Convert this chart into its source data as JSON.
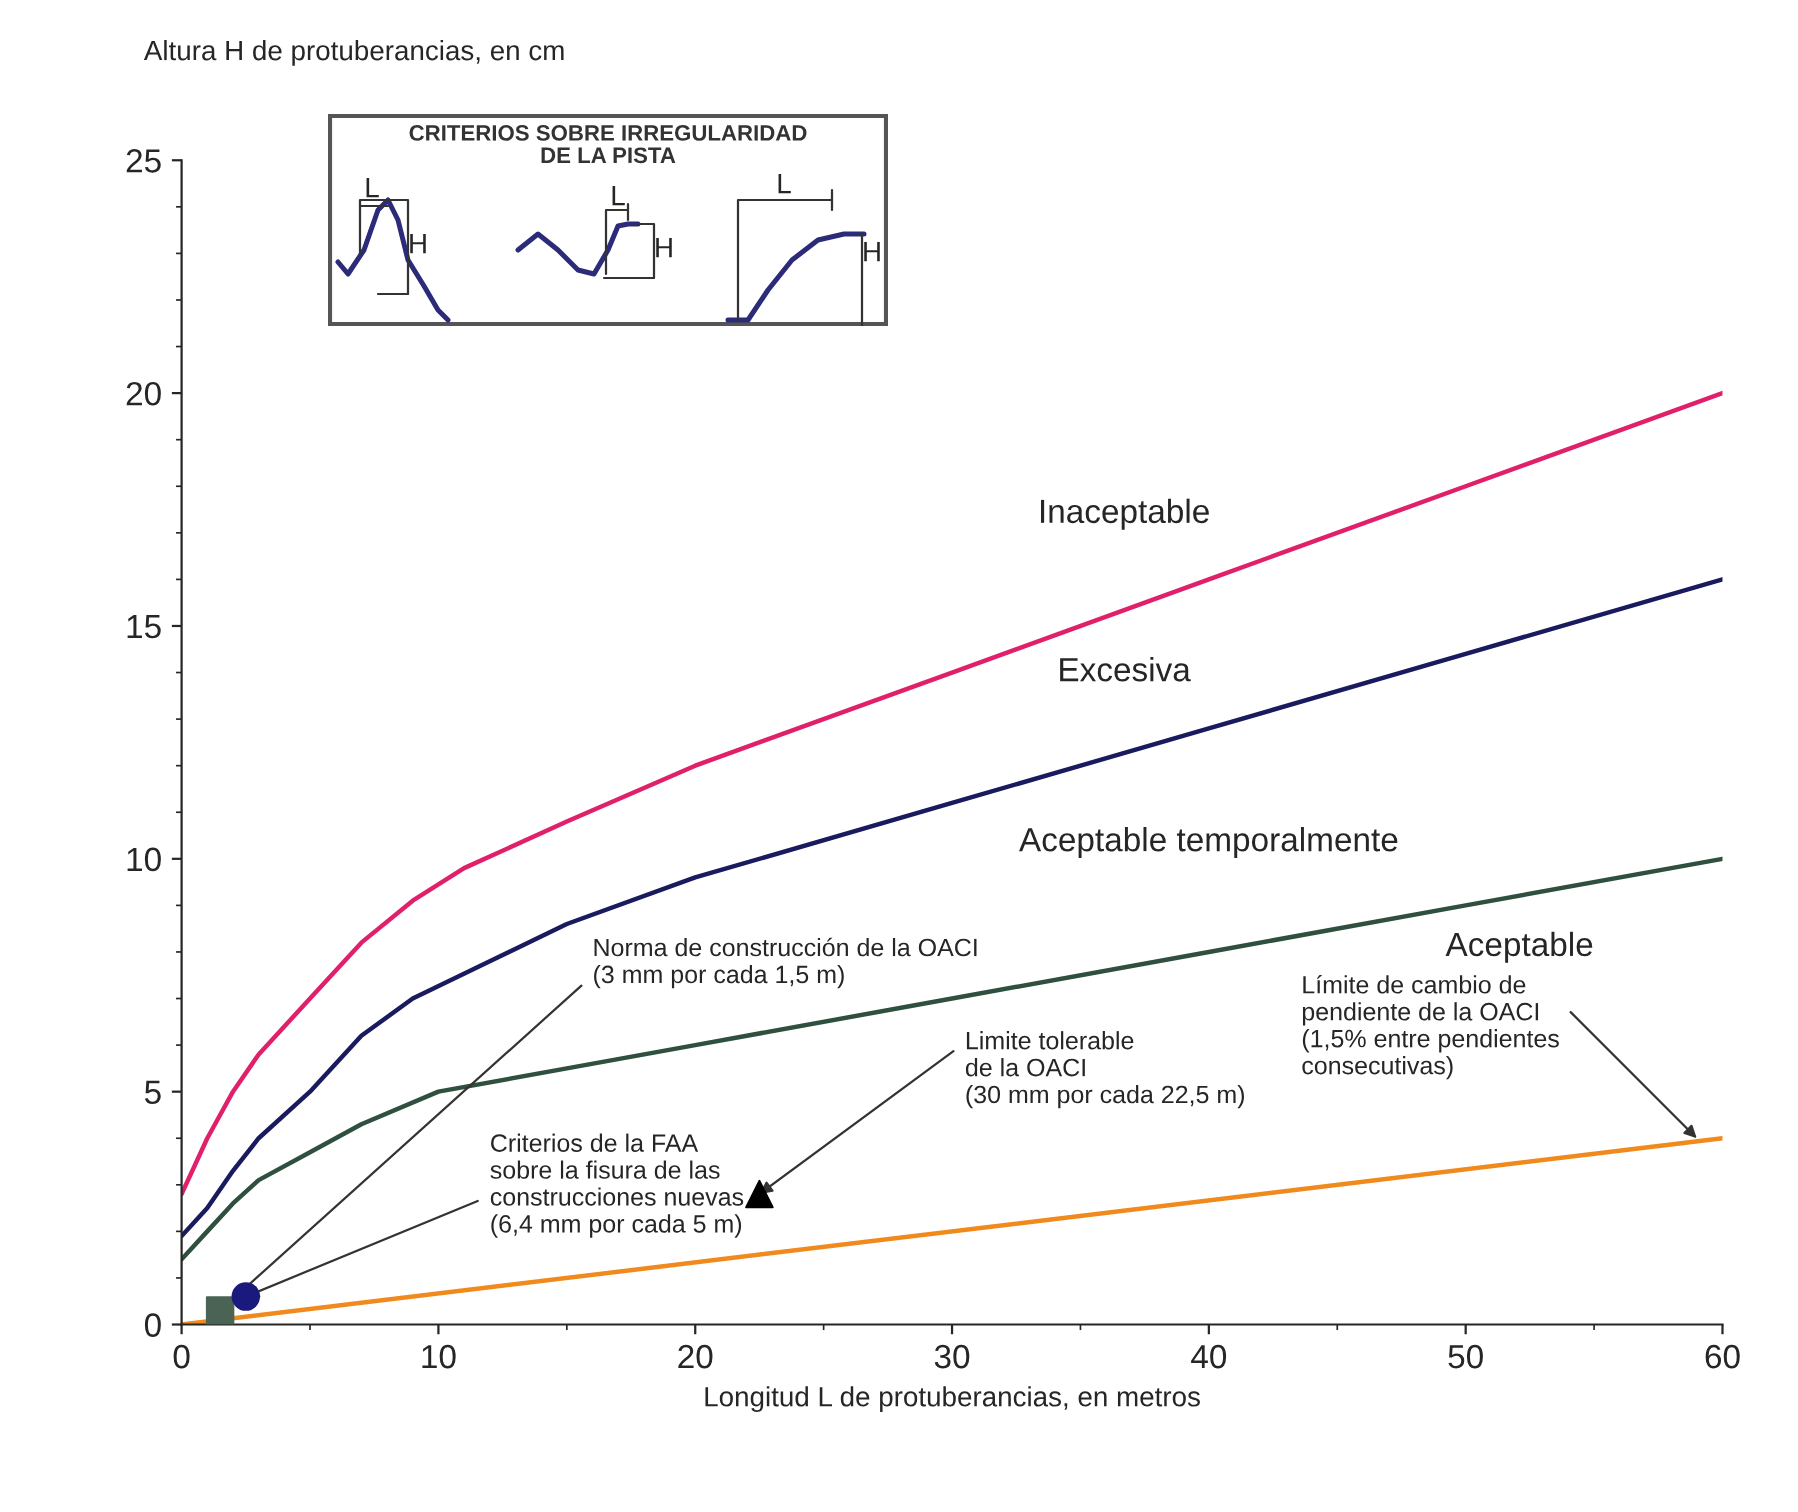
{
  "chart_data": {
    "type": "line",
    "xlabel": "Longitud L de protuberancias, en metros",
    "ylabel": "Altura H de protuberancias, en cm",
    "xlim": [
      0,
      60
    ],
    "ylim": [
      0,
      25
    ],
    "xticks": [
      0,
      10,
      20,
      30,
      40,
      50,
      60
    ],
    "yticks": [
      0,
      5,
      10,
      15,
      20,
      25
    ],
    "grid": false,
    "legend": false,
    "marker": "none",
    "line_style": "solid",
    "series": [
      {
        "color": "#e0206a",
        "x": [
          0,
          1,
          2,
          3,
          5,
          7,
          9,
          11,
          15,
          20,
          30,
          40,
          50,
          60
        ],
        "values": [
          2.8,
          4,
          5,
          5.8,
          7,
          8.2,
          9.1,
          9.8,
          10.8,
          12,
          14,
          16,
          18,
          20
        ]
      },
      {
        "color": "#1a1a5e",
        "x": [
          0,
          1,
          2,
          3,
          5,
          7,
          9,
          12,
          15,
          20,
          30,
          40,
          50,
          60
        ],
        "values": [
          1.9,
          2.5,
          3.3,
          4,
          5,
          6.2,
          7,
          7.8,
          8.6,
          9.6,
          11.2,
          12.8,
          14.4,
          16
        ]
      },
      {
        "color": "#2f4f3f",
        "x": [
          0,
          1,
          2,
          3,
          5,
          7,
          10,
          15,
          20,
          30,
          40,
          50,
          60
        ],
        "values": [
          1.4,
          2,
          2.6,
          3.1,
          3.7,
          4.3,
          5,
          5.5,
          6,
          7,
          8,
          9,
          10
        ]
      },
      {
        "color": "#f08a1c",
        "x": [
          0,
          60
        ],
        "values": [
          0,
          4
        ]
      },
      {
        "type": "scatter",
        "marker": "square",
        "color": "#4a6355",
        "x": [
          1.5
        ],
        "values": [
          0.3
        ]
      },
      {
        "type": "scatter",
        "marker": "circle",
        "color": "#1a1a7e",
        "x": [
          2.5
        ],
        "values": [
          0.6
        ]
      },
      {
        "type": "scatter",
        "marker": "triangle",
        "color": "#000000",
        "x": [
          22.5
        ],
        "values": [
          2.8
        ]
      }
    ],
    "annotations": [
      "Inaceptable",
      "Excesiva",
      "Aceptable temporalmente",
      "Aceptable",
      {
        "text": "Norma de construcción de la OACI\n(3 mm por cada 1,5 m)",
        "x": 1.5,
        "y": 0.3
      },
      {
        "text": "Criterios de la FAA\nsobre la fisura de las\nconstrucciones nuevas\n(6,4 mm por cada 5 m)",
        "x": 2.5,
        "y": 0.6
      },
      {
        "text": "Limite tolerable\nde la OACI\n(30 mm por cada 22,5 m)",
        "x": 22.5,
        "y": 2.8
      },
      {
        "text": "Límite de cambio de\npendiente de la OACI\n(1,5% entre pendientes\nconsecutivas)",
        "x": 59,
        "y": 4.0
      },
      "CRITERIOS SOBRE IRREGULARIDAD\nDE LA PISTA",
      "L",
      "H",
      "L",
      "H",
      "L",
      "H"
    ]
  }
}
